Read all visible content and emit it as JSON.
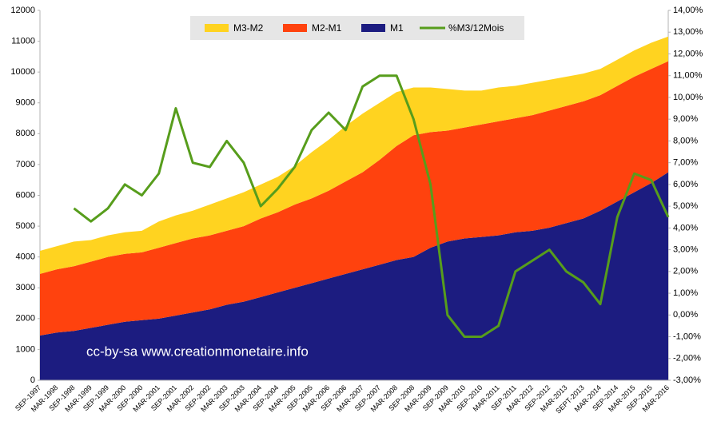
{
  "chart_data": {
    "type": "area",
    "stacked": true,
    "annotation": "cc-by-sa www.creationmonetaire.info",
    "categories": [
      "SEP-1997",
      "MAR-1998",
      "SEP-1998",
      "MAR-1999",
      "SEP-1999",
      "MAR-2000",
      "SEP-2000",
      "MAR-2001",
      "SEP-2001",
      "MAR-2002",
      "SEP-2002",
      "MAR-2003",
      "SEP-2003",
      "MAR-2004",
      "SEP-2004",
      "MAR-2005",
      "SEP-2005",
      "MAR-2006",
      "SEP-2006",
      "MAR-2007",
      "SEP-2007",
      "MAR-2008",
      "SEP-2008",
      "MAR-2009",
      "SEP-2009",
      "MAR-2010",
      "SEP-2010",
      "MAR-2011",
      "SEP-2011",
      "MAR-2012",
      "SEP-2012",
      "MAR-2013",
      "SEPT-2013",
      "MAR-2014",
      "SEP-2014",
      "MAR-2015",
      "SEP-2015",
      "MAR-2016"
    ],
    "series": [
      {
        "name": "M3-M2",
        "color": "#ffd320",
        "values": [
          750,
          750,
          800,
          700,
          700,
          700,
          700,
          850,
          900,
          900,
          1000,
          1050,
          1100,
          1100,
          1150,
          1250,
          1500,
          1650,
          1800,
          1900,
          1850,
          1750,
          1550,
          1450,
          1350,
          1200,
          1100,
          1100,
          1050,
          1050,
          1000,
          950,
          900,
          850,
          850,
          850,
          850,
          800
        ]
      },
      {
        "name": "M2-M1",
        "color": "#ff420e",
        "values": [
          2000,
          2050,
          2100,
          2150,
          2200,
          2200,
          2200,
          2300,
          2350,
          2400,
          2400,
          2400,
          2450,
          2550,
          2600,
          2700,
          2750,
          2850,
          3000,
          3150,
          3400,
          3700,
          3950,
          3750,
          3600,
          3600,
          3650,
          3700,
          3700,
          3750,
          3800,
          3800,
          3800,
          3750,
          3750,
          3750,
          3700,
          3600
        ]
      },
      {
        "name": "M1",
        "color": "#1c1c80",
        "values": [
          1450,
          1550,
          1600,
          1700,
          1800,
          1900,
          1950,
          2000,
          2100,
          2200,
          2300,
          2450,
          2550,
          2700,
          2850,
          3000,
          3150,
          3300,
          3450,
          3600,
          3750,
          3900,
          4000,
          4300,
          4500,
          4600,
          4650,
          4700,
          4800,
          4850,
          4950,
          5100,
          5250,
          5500,
          5800,
          6100,
          6400,
          6750
        ]
      },
      {
        "name": "%M3/12Mois",
        "color": "#579d1c",
        "type": "line",
        "axis": "y2",
        "values": [
          null,
          null,
          4.9,
          4.3,
          4.9,
          6.0,
          5.5,
          6.5,
          9.5,
          7.0,
          6.8,
          8.0,
          7.0,
          5.0,
          5.8,
          6.8,
          8.5,
          9.3,
          8.5,
          10.5,
          11.0,
          11.0,
          9.0,
          6.0,
          0.0,
          -1.0,
          -1.0,
          -0.5,
          2.0,
          2.5,
          3.0,
          2.0,
          1.5,
          0.5,
          4.5,
          6.5,
          6.2,
          4.5
        ]
      }
    ],
    "ylim": [
      0,
      12000
    ],
    "yticks": [
      0,
      1000,
      2000,
      3000,
      4000,
      5000,
      6000,
      7000,
      8000,
      9000,
      10000,
      11000,
      12000
    ],
    "y2lim": [
      -3,
      14
    ],
    "y2ticks": [
      {
        "value": -3,
        "label": "-3,00%"
      },
      {
        "value": -2,
        "label": "-2,00%"
      },
      {
        "value": -1,
        "label": "-1,00%"
      },
      {
        "value": 0,
        "label": "0,00%"
      },
      {
        "value": 1,
        "label": "1,00%"
      },
      {
        "value": 2,
        "label": "2,00%"
      },
      {
        "value": 3,
        "label": "3,00%"
      },
      {
        "value": 4,
        "label": "4,00%"
      },
      {
        "value": 5,
        "label": "5,00%"
      },
      {
        "value": 6,
        "label": "6,00%"
      },
      {
        "value": 7,
        "label": "7,00%"
      },
      {
        "value": 8,
        "label": "8,00%"
      },
      {
        "value": 9,
        "label": "9,00%"
      },
      {
        "value": 10,
        "label": "10,00%"
      },
      {
        "value": 11,
        "label": "11,00%"
      },
      {
        "value": 12,
        "label": "12,00%"
      },
      {
        "value": 13,
        "label": "13,00%"
      },
      {
        "value": 14,
        "label": "14,00%"
      }
    ]
  }
}
